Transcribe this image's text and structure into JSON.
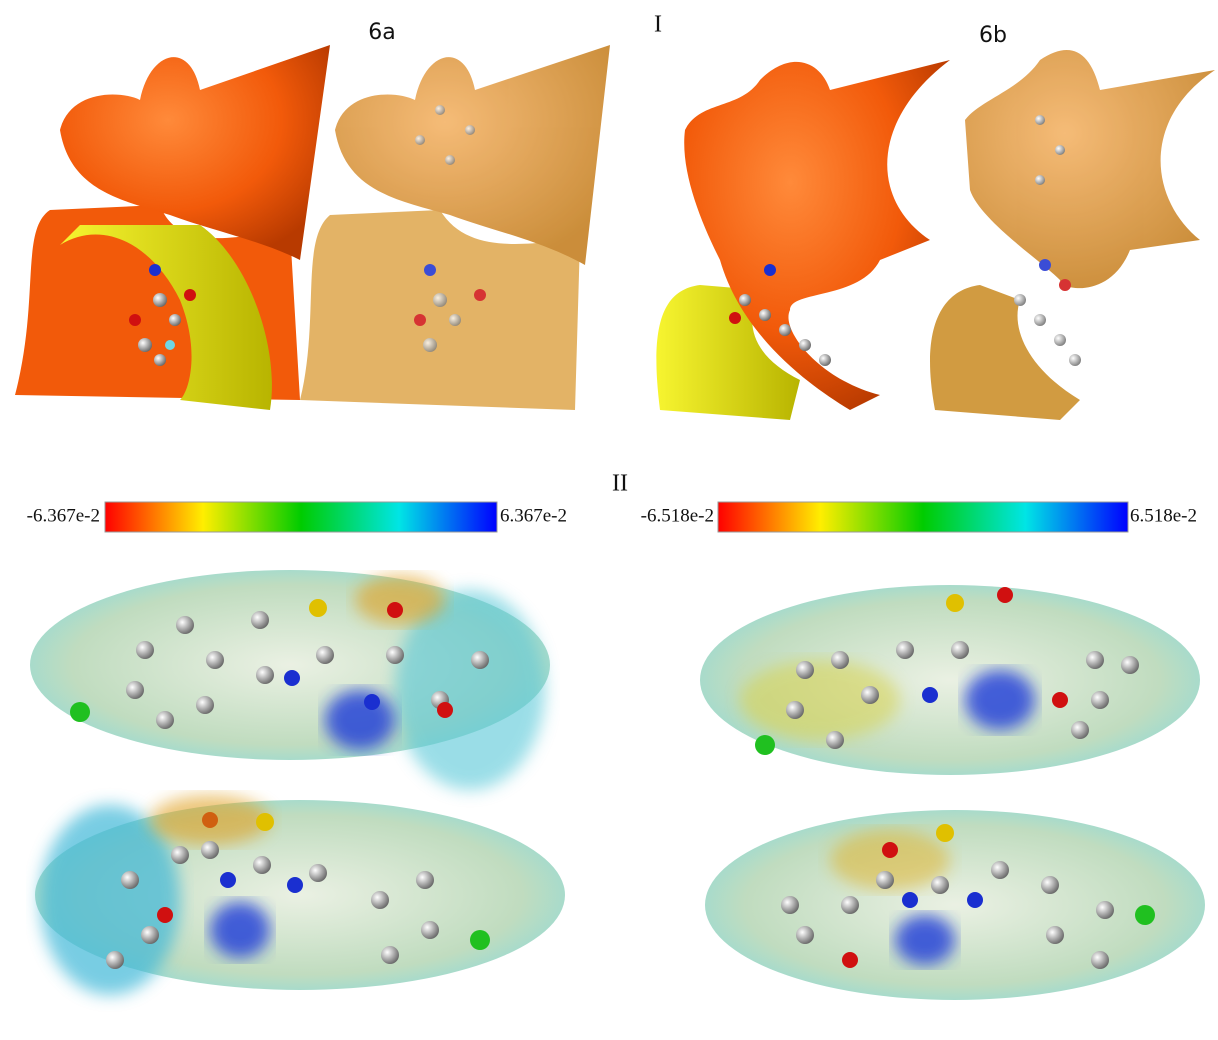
{
  "labels": {
    "left_title": "6a",
    "part_one": "I",
    "right_title": "6b",
    "part_two": "II"
  },
  "colorbars": [
    {
      "min": "-6.367e-2",
      "max": "6.367e-2"
    },
    {
      "min": "-6.518e-2",
      "max": "6.518e-2"
    }
  ]
}
